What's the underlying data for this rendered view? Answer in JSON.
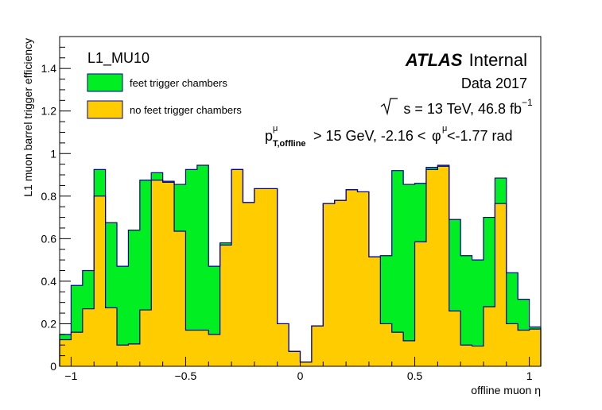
{
  "chart_data": {
    "type": "bar",
    "stacked_histogram": true,
    "x_edges": [
      -1.05,
      -1.0,
      -0.95,
      -0.9,
      -0.85,
      -0.8,
      -0.75,
      -0.7,
      -0.65,
      -0.6,
      -0.55,
      -0.5,
      -0.45,
      -0.4,
      -0.35,
      -0.3,
      -0.25,
      -0.2,
      -0.15,
      -0.1,
      -0.05,
      0.0,
      0.05,
      0.1,
      0.15,
      0.2,
      0.25,
      0.3,
      0.35,
      0.4,
      0.45,
      0.5,
      0.55,
      0.6,
      0.65,
      0.7,
      0.75,
      0.8,
      0.85,
      0.9,
      0.95,
      1.0,
      1.05
    ],
    "series": [
      {
        "name": "feet trigger chambers",
        "color": "#00ee22",
        "values": [
          0.15,
          0.38,
          0.45,
          0.925,
          0.675,
          0.47,
          0.64,
          0.875,
          0.91,
          0.87,
          0.855,
          0.925,
          0.945,
          0.47,
          0.58,
          0.925,
          0.77,
          0.835,
          0.835,
          0.2,
          0.07,
          0.02,
          0.19,
          0.765,
          0.78,
          0.83,
          0.82,
          0.515,
          0.52,
          0.92,
          0.855,
          0.86,
          0.935,
          0.945,
          0.69,
          0.52,
          0.5,
          0.7,
          0.885,
          0.44,
          0.315,
          0.185
        ]
      },
      {
        "name": "no feet trigger chambers",
        "color": "#ffcc00",
        "values": [
          0.125,
          0.16,
          0.27,
          0.8,
          0.275,
          0.1,
          0.105,
          0.265,
          0.875,
          0.865,
          0.635,
          0.17,
          0.17,
          0.15,
          0.57,
          0.925,
          0.77,
          0.835,
          0.835,
          0.2,
          0.07,
          0.02,
          0.19,
          0.765,
          0.78,
          0.83,
          0.82,
          0.515,
          0.2,
          0.16,
          0.12,
          0.585,
          0.925,
          0.94,
          0.26,
          0.1,
          0.095,
          0.28,
          0.765,
          0.2,
          0.17,
          0.175
        ]
      }
    ],
    "xlabel": "offline muon η",
    "ylabel": "L1 muon barrel trigger efficiency",
    "xlim": [
      -1.05,
      1.05
    ],
    "ylim": [
      0,
      1.55
    ],
    "xticks": [
      -1,
      -0.5,
      0,
      0.5,
      1
    ],
    "xtick_labels": [
      "−1",
      "−0.5",
      "0",
      "0.5",
      "1"
    ],
    "yticks": [
      0,
      0.2,
      0.4,
      0.6,
      0.8,
      1,
      1.2,
      1.4
    ],
    "ytick_labels": [
      "0",
      "0.2",
      "0.4",
      "0.6",
      "0.8",
      "1",
      "1.2",
      "1.4"
    ],
    "legend_placement": "top-left",
    "grid": false
  },
  "annotations": {
    "trigger_name": "L1_MU10",
    "atlas": "ATLAS",
    "internal": "Internal",
    "data_label": "Data 2017",
    "energy_sqrt": "s",
    "energy_rest": " = 13 TeV, 46.8 fb",
    "energy_sup": "−1",
    "cut_p": "p",
    "cut_p_sup": "μ",
    "cut_p_sub": "T,offline",
    "cut_mid": " > 15 GeV, -2.16 <",
    "cut_phi": "φ",
    "cut_phi_sup": "μ",
    "cut_end": " <-1.77 rad"
  },
  "colors": {
    "outline": "#000099",
    "axis": "#000000"
  }
}
